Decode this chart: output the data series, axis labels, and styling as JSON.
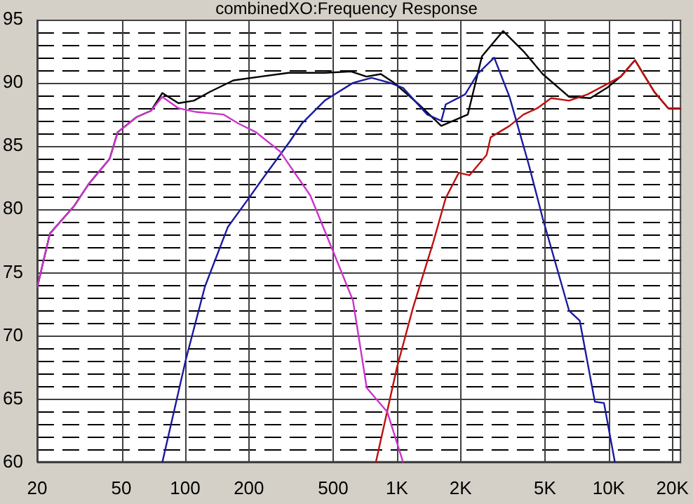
{
  "chart_data": {
    "type": "line",
    "title": "combinedXO:Frequency Response",
    "log": "x",
    "grid": true,
    "legend": false,
    "marker": "none",
    "line_style": "solid",
    "xlim": [
      20,
      22000
    ],
    "xticks": [
      20,
      50,
      100,
      200,
      500,
      {
        "value": 1000,
        "label": "1K"
      },
      {
        "value": 2000,
        "label": "2K"
      },
      {
        "value": 5000,
        "label": "5K"
      },
      {
        "value": 10000,
        "label": "10K"
      },
      {
        "value": 20000,
        "label": "20K"
      }
    ],
    "ylim": [
      60,
      95
    ],
    "yticks": [
      60,
      {
        "value": 61,
        "label": null
      },
      {
        "value": 62,
        "label": null
      },
      {
        "value": 63,
        "label": null
      },
      {
        "value": 64,
        "label": null
      },
      65,
      {
        "value": 66,
        "label": null
      },
      {
        "value": 67,
        "label": null
      },
      {
        "value": 68,
        "label": null
      },
      {
        "value": 69,
        "label": null
      },
      70,
      {
        "value": 71,
        "label": null
      },
      {
        "value": 72,
        "label": null
      },
      {
        "value": 73,
        "label": null
      },
      {
        "value": 74,
        "label": null
      },
      75,
      {
        "value": 76,
        "label": null
      },
      {
        "value": 77,
        "label": null
      },
      {
        "value": 78,
        "label": null
      },
      {
        "value": 79,
        "label": null
      },
      80,
      {
        "value": 81,
        "label": null
      },
      {
        "value": 82,
        "label": null
      },
      {
        "value": 83,
        "label": null
      },
      {
        "value": 84,
        "label": null
      },
      85,
      {
        "value": 86,
        "label": null
      },
      {
        "value": 87,
        "label": null
      },
      {
        "value": 88,
        "label": null
      },
      {
        "value": 89,
        "label": null
      },
      90,
      {
        "value": 91,
        "label": null
      },
      {
        "value": 92,
        "label": null
      },
      {
        "value": 93,
        "label": null
      },
      {
        "value": 94,
        "label": null
      },
      95
    ],
    "series": [
      {
        "color": "#cc33cc",
        "x": [
          20,
          23,
          30,
          35,
          44,
          48,
          59,
          69,
          78,
          93,
          113,
          152,
          178,
          216,
          280,
          390,
          505,
          620,
          720,
          900,
          1070
        ],
        "values": [
          73.8,
          78.1,
          80.3,
          82,
          84,
          86.1,
          87.3,
          87.8,
          88.9,
          88,
          87.7,
          87.5,
          86.8,
          86.1,
          84.6,
          81.1,
          76.5,
          72.8,
          65.9,
          64,
          60
        ]
      },
      {
        "color": "#1a1aa0",
        "x": [
          78,
          101,
          124,
          159,
          200,
          227,
          313,
          356,
          456,
          620,
          760,
          930,
          1070,
          1390,
          1620,
          1700,
          2100,
          2400,
          2880,
          3400,
          4200,
          4880,
          6500,
          7300,
          8600,
          9500,
          10700
        ],
        "values": [
          60,
          68.2,
          73.9,
          78.6,
          80.9,
          82.2,
          85.4,
          86.8,
          88.6,
          90,
          90.4,
          90,
          89.6,
          87.5,
          87,
          88.3,
          89.1,
          90.7,
          92,
          88.9,
          83.5,
          79.3,
          72,
          71.2,
          64.8,
          64.7,
          60
        ]
      },
      {
        "color": "#c01010",
        "x": [
          795,
          1000,
          1190,
          1490,
          1700,
          1960,
          2200,
          2650,
          2770,
          3400,
          3960,
          4600,
          5350,
          6500,
          7960,
          9800,
          11400,
          13300,
          16400,
          19100,
          22000
        ],
        "values": [
          60,
          67.5,
          72.2,
          77.5,
          80.9,
          82.9,
          82.7,
          84.3,
          85.7,
          86.6,
          87.5,
          88,
          88.8,
          88.6,
          89.1,
          89.9,
          90.5,
          91.8,
          89.3,
          88,
          88
        ]
      },
      {
        "color": "#000000",
        "x": [
          20,
          23,
          30,
          35,
          44,
          48,
          59,
          69,
          78,
          93,
          110,
          131,
          169,
          227,
          308,
          456,
          608,
          718,
          840,
          970,
          1250,
          1620,
          2160,
          2520,
          3170,
          3960,
          4880,
          6500,
          8200,
          9800,
          11400,
          13300,
          16400,
          19100,
          22000
        ],
        "values": [
          73.8,
          78.1,
          80.3,
          82,
          84,
          86.1,
          87.3,
          87.8,
          89.2,
          88.4,
          88.6,
          89.3,
          90.2,
          90.5,
          90.8,
          90.8,
          90.9,
          90.5,
          90.7,
          90,
          88.4,
          86.6,
          87.5,
          92.1,
          94.1,
          92.5,
          90.7,
          88.9,
          88.8,
          89.6,
          90.5,
          91.8,
          89.3,
          88,
          88
        ]
      }
    ]
  }
}
